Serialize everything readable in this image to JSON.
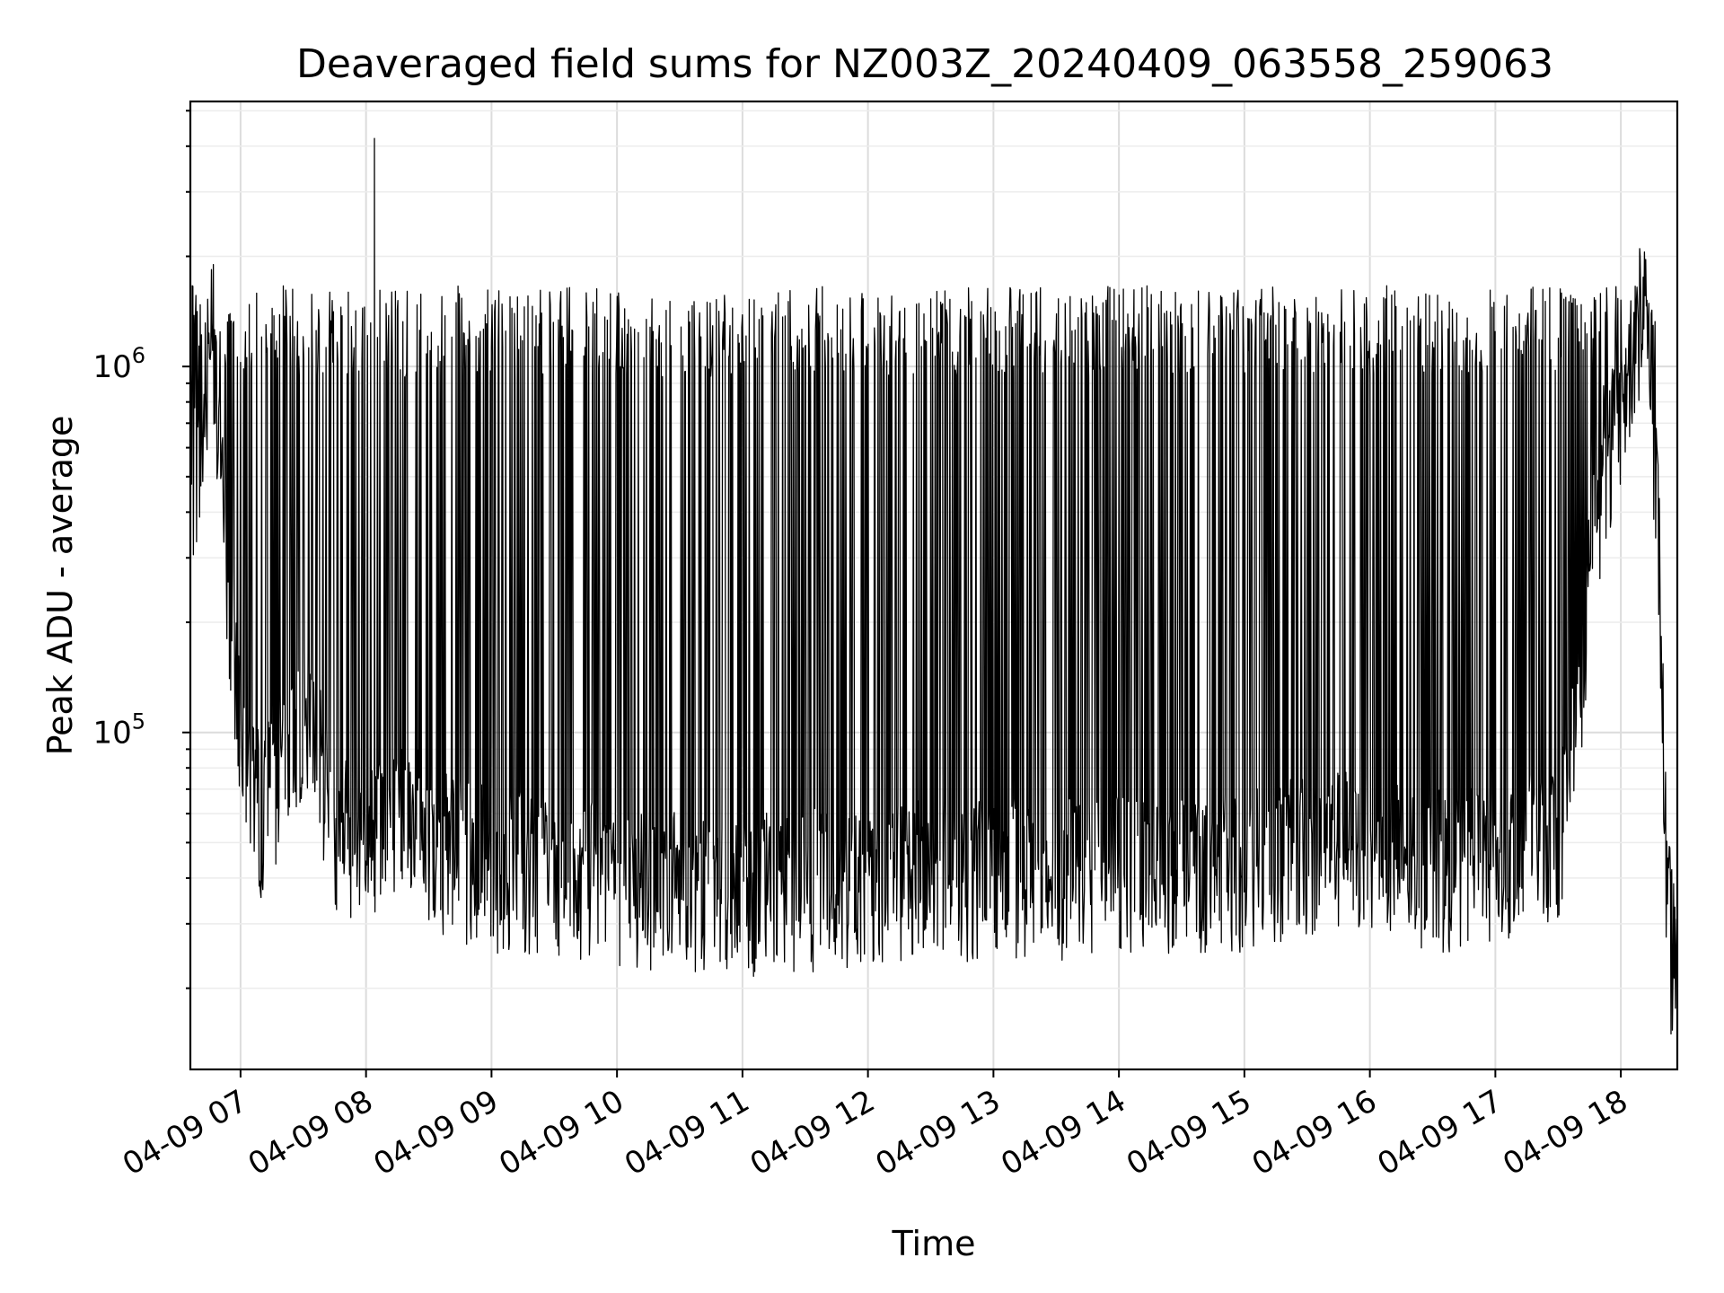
{
  "chart_data": {
    "type": "line",
    "title": "Deaveraged field sums for NZ003Z_20240409_063558_259063",
    "xlabel": "Time",
    "ylabel": "Peak ADU - average",
    "yscale": "log",
    "grid": true,
    "xlim": [
      "2024-04-09 06:36",
      "2024-04-09 18:27"
    ],
    "ylim": [
      12000,
      5300000
    ],
    "x_ticks": [
      {
        "t": "2024-04-09 07:00",
        "label": "04-09 07"
      },
      {
        "t": "2024-04-09 08:00",
        "label": "04-09 08"
      },
      {
        "t": "2024-04-09 09:00",
        "label": "04-09 09"
      },
      {
        "t": "2024-04-09 10:00",
        "label": "04-09 10"
      },
      {
        "t": "2024-04-09 11:00",
        "label": "04-09 11"
      },
      {
        "t": "2024-04-09 12:00",
        "label": "04-09 12"
      },
      {
        "t": "2024-04-09 13:00",
        "label": "04-09 13"
      },
      {
        "t": "2024-04-09 14:00",
        "label": "04-09 14"
      },
      {
        "t": "2024-04-09 15:00",
        "label": "04-09 15"
      },
      {
        "t": "2024-04-09 16:00",
        "label": "04-09 16"
      },
      {
        "t": "2024-04-09 17:00",
        "label": "04-09 17"
      },
      {
        "t": "2024-04-09 18:00",
        "label": "04-09 18"
      }
    ],
    "y_ticks": [
      {
        "value": 100000,
        "base": "10",
        "exp": "5"
      },
      {
        "value": 1000000,
        "base": "10",
        "exp": "6"
      }
    ],
    "series": [
      {
        "color": "#000000",
        "baseline": [
          [
            "2024-04-09 06:36",
            450000
          ],
          [
            "2024-04-09 06:42",
            600000
          ],
          [
            "2024-04-09 06:46",
            1400000
          ],
          [
            "2024-04-09 06:50",
            650000
          ],
          [
            "2024-04-09 06:53",
            250000
          ],
          [
            "2024-04-09 06:56",
            180000
          ],
          [
            "2024-04-09 07:00",
            110000
          ],
          [
            "2024-04-09 07:05",
            75000
          ],
          [
            "2024-04-09 07:10",
            58000
          ],
          [
            "2024-04-09 07:20",
            80000
          ],
          [
            "2024-04-09 07:30",
            110000
          ],
          [
            "2024-04-09 07:38",
            80000
          ],
          [
            "2024-04-09 07:45",
            55000
          ],
          [
            "2024-04-09 08:00",
            50000
          ],
          [
            "2024-04-09 08:20",
            60000
          ],
          [
            "2024-04-09 08:30",
            48000
          ],
          [
            "2024-04-09 09:00",
            42000
          ],
          [
            "2024-04-09 10:00",
            38000
          ],
          [
            "2024-04-09 11:00",
            36000
          ],
          [
            "2024-04-09 12:00",
            38000
          ],
          [
            "2024-04-09 13:00",
            40000
          ],
          [
            "2024-04-09 14:00",
            40000
          ],
          [
            "2024-04-09 15:00",
            42000
          ],
          [
            "2024-04-09 15:50",
            48000
          ],
          [
            "2024-04-09 16:30",
            42000
          ],
          [
            "2024-04-09 17:00",
            42000
          ],
          [
            "2024-04-09 17:30",
            50000
          ],
          [
            "2024-04-09 17:38",
            90000
          ],
          [
            "2024-04-09 17:45",
            250000
          ],
          [
            "2024-04-09 17:52",
            550000
          ],
          [
            "2024-04-09 18:00",
            700000
          ],
          [
            "2024-04-09 18:08",
            1300000
          ],
          [
            "2024-04-09 18:12",
            1700000
          ],
          [
            "2024-04-09 18:18",
            350000
          ],
          [
            "2024-04-09 18:22",
            35000
          ],
          [
            "2024-04-09 18:25",
            24000
          ],
          [
            "2024-04-09 18:27",
            30000
          ]
        ],
        "peaks": [
          {
            "t": "2024-04-09 06:47",
            "value": 1900000
          },
          {
            "t": "2024-04-09 08:04",
            "value": 4200000
          },
          {
            "t": "2024-04-09 18:09",
            "value": 2100000
          },
          {
            "t": "2024-04-09 12:15",
            "value": 1400000
          },
          {
            "t": "2024-04-09 16:38",
            "value": 1500000
          }
        ],
        "spike_top_typical": 1400000,
        "floor_typical": 30000,
        "min": {
          "t": "2024-04-09 18:24",
          "value": 15000
        }
      }
    ]
  }
}
